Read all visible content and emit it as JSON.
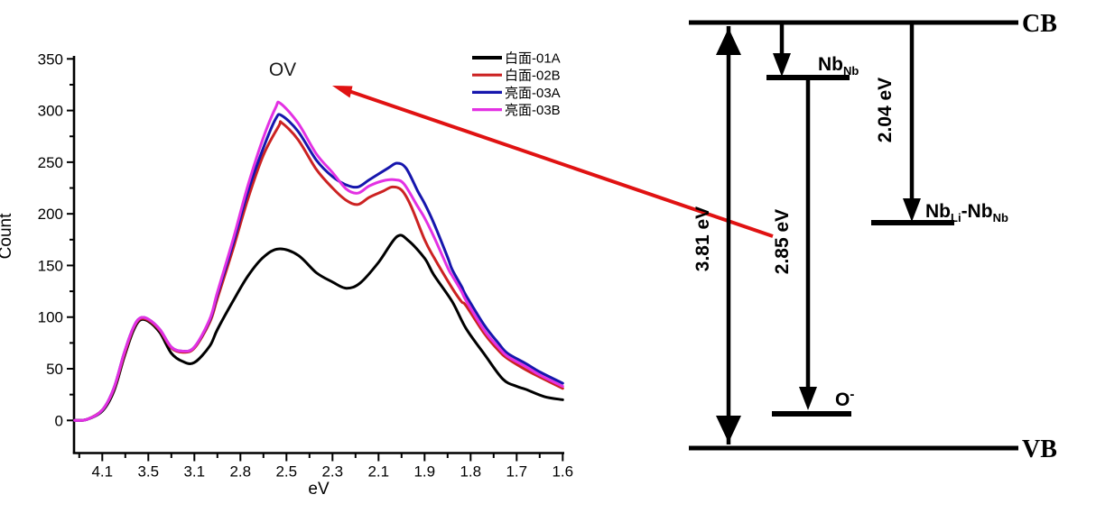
{
  "figure_background": "#ffffff",
  "colors": {
    "axis": "#000000",
    "diagram": "#000000",
    "annotation_arrow": "#e01212",
    "series_black": "#000000",
    "series_red": "#cc2222",
    "series_blue": "#1616ad",
    "series_magenta": "#e331e3"
  },
  "chart_data": {
    "type": "line",
    "title": "",
    "xlabel": "eV",
    "ylabel": "Count",
    "annotation": "OV",
    "x_ticks": [
      4.1,
      3.5,
      3.1,
      2.8,
      2.5,
      2.3,
      2.1,
      1.9,
      1.8,
      1.7,
      1.6
    ],
    "x_axis_note": "major ticks equally spaced; eV values decrease left to right (nonlinear energy scale)",
    "y_ticks": [
      0,
      50,
      100,
      150,
      200,
      250,
      300,
      350
    ],
    "ylim": [
      0,
      350
    ],
    "grid": false,
    "legend_position": "upper right",
    "series": [
      {
        "name": "白面-01A",
        "color": "#000000",
        "points": [
          [
            4.46,
            0
          ],
          [
            4.3,
            1
          ],
          [
            4.1,
            9
          ],
          [
            3.95,
            28
          ],
          [
            3.82,
            60
          ],
          [
            3.7,
            86
          ],
          [
            3.61,
            97
          ],
          [
            3.5,
            96
          ],
          [
            3.4,
            85
          ],
          [
            3.3,
            65
          ],
          [
            3.2,
            57
          ],
          [
            3.1,
            56
          ],
          [
            3.0,
            72
          ],
          [
            2.95,
            88
          ],
          [
            2.85,
            115
          ],
          [
            2.75,
            140
          ],
          [
            2.65,
            158
          ],
          [
            2.55,
            166
          ],
          [
            2.45,
            160
          ],
          [
            2.37,
            143
          ],
          [
            2.3,
            134
          ],
          [
            2.24,
            128
          ],
          [
            2.18,
            133
          ],
          [
            2.1,
            153
          ],
          [
            2.02,
            178
          ],
          [
            1.97,
            174
          ],
          [
            1.9,
            157
          ],
          [
            1.88,
            141
          ],
          [
            1.84,
            115
          ],
          [
            1.81,
            89
          ],
          [
            1.77,
            64
          ],
          [
            1.73,
            40
          ],
          [
            1.7,
            33
          ],
          [
            1.68,
            30
          ],
          [
            1.64,
            23
          ],
          [
            1.6,
            20
          ]
        ]
      },
      {
        "name": "白面-02B",
        "color": "#cc2222",
        "points": [
          [
            4.46,
            0
          ],
          [
            4.3,
            1
          ],
          [
            4.1,
            10
          ],
          [
            3.95,
            30
          ],
          [
            3.82,
            62
          ],
          [
            3.7,
            88
          ],
          [
            3.61,
            98
          ],
          [
            3.5,
            97
          ],
          [
            3.4,
            87
          ],
          [
            3.3,
            70
          ],
          [
            3.2,
            66
          ],
          [
            3.1,
            70
          ],
          [
            3.0,
            95
          ],
          [
            2.95,
            118
          ],
          [
            2.85,
            165
          ],
          [
            2.75,
            215
          ],
          [
            2.65,
            257
          ],
          [
            2.55,
            285
          ],
          [
            2.53,
            288
          ],
          [
            2.45,
            272
          ],
          [
            2.37,
            243
          ],
          [
            2.3,
            225
          ],
          [
            2.24,
            213
          ],
          [
            2.19,
            209
          ],
          [
            2.14,
            216
          ],
          [
            2.08,
            222
          ],
          [
            2.04,
            226
          ],
          [
            2.0,
            223
          ],
          [
            1.96,
            208
          ],
          [
            1.9,
            175
          ],
          [
            1.88,
            158
          ],
          [
            1.84,
            128
          ],
          [
            1.82,
            115
          ],
          [
            1.81,
            111
          ],
          [
            1.77,
            84
          ],
          [
            1.74,
            68
          ],
          [
            1.72,
            60
          ],
          [
            1.68,
            49
          ],
          [
            1.65,
            42
          ],
          [
            1.6,
            31
          ]
        ]
      },
      {
        "name": "亮面-03A",
        "color": "#1616ad",
        "points": [
          [
            4.46,
            0
          ],
          [
            4.3,
            1
          ],
          [
            4.1,
            10
          ],
          [
            3.95,
            31
          ],
          [
            3.82,
            64
          ],
          [
            3.7,
            89
          ],
          [
            3.61,
            99
          ],
          [
            3.5,
            98
          ],
          [
            3.4,
            88
          ],
          [
            3.3,
            71
          ],
          [
            3.2,
            67
          ],
          [
            3.1,
            71
          ],
          [
            3.0,
            97
          ],
          [
            2.95,
            122
          ],
          [
            2.85,
            170
          ],
          [
            2.75,
            222
          ],
          [
            2.65,
            264
          ],
          [
            2.57,
            292
          ],
          [
            2.53,
            295
          ],
          [
            2.45,
            280
          ],
          [
            2.37,
            252
          ],
          [
            2.3,
            236
          ],
          [
            2.24,
            228
          ],
          [
            2.19,
            226
          ],
          [
            2.14,
            233
          ],
          [
            2.06,
            244
          ],
          [
            2.02,
            249
          ],
          [
            1.98,
            244
          ],
          [
            1.93,
            222
          ],
          [
            1.9,
            210
          ],
          [
            1.88,
            191
          ],
          [
            1.85,
            158
          ],
          [
            1.84,
            146
          ],
          [
            1.82,
            130
          ],
          [
            1.81,
            121
          ],
          [
            1.77,
            92
          ],
          [
            1.74,
            75
          ],
          [
            1.72,
            65
          ],
          [
            1.68,
            55
          ],
          [
            1.65,
            47
          ],
          [
            1.6,
            36
          ]
        ]
      },
      {
        "name": "亮面-03B",
        "color": "#e331e3",
        "points": [
          [
            4.46,
            0
          ],
          [
            4.3,
            1
          ],
          [
            4.1,
            10
          ],
          [
            3.95,
            31
          ],
          [
            3.82,
            64
          ],
          [
            3.7,
            89
          ],
          [
            3.61,
            99
          ],
          [
            3.5,
            98
          ],
          [
            3.4,
            88
          ],
          [
            3.3,
            71
          ],
          [
            3.2,
            67
          ],
          [
            3.1,
            71
          ],
          [
            3.0,
            98
          ],
          [
            2.95,
            124
          ],
          [
            2.85,
            174
          ],
          [
            2.75,
            228
          ],
          [
            2.65,
            274
          ],
          [
            2.57,
            303
          ],
          [
            2.54,
            307
          ],
          [
            2.45,
            288
          ],
          [
            2.37,
            258
          ],
          [
            2.3,
            240
          ],
          [
            2.24,
            224
          ],
          [
            2.19,
            220
          ],
          [
            2.14,
            227
          ],
          [
            2.08,
            232
          ],
          [
            2.03,
            233
          ],
          [
            1.99,
            229
          ],
          [
            1.93,
            207
          ],
          [
            1.9,
            196
          ],
          [
            1.88,
            178
          ],
          [
            1.85,
            148
          ],
          [
            1.84,
            140
          ],
          [
            1.82,
            125
          ],
          [
            1.81,
            116
          ],
          [
            1.77,
            87
          ],
          [
            1.74,
            71
          ],
          [
            1.72,
            62
          ],
          [
            1.68,
            52
          ],
          [
            1.65,
            44
          ],
          [
            1.6,
            33
          ]
        ]
      }
    ]
  },
  "diagram": {
    "bands": [
      {
        "name": "conduction-band",
        "label": "CB"
      },
      {
        "name": "valence-band",
        "label": "VB"
      }
    ],
    "levels": [
      {
        "name": "nbnb-level",
        "label_parts": [
          {
            "text": "Nb"
          },
          {
            "sub": "Nb"
          }
        ]
      },
      {
        "name": "o-minus-level",
        "label_parts": [
          {
            "text": "O"
          },
          {
            "sup": "-"
          }
        ]
      },
      {
        "name": "nbli-nbnb-level",
        "label_parts": [
          {
            "text": "Nb"
          },
          {
            "sub": "Li"
          },
          {
            "text": "-Nb"
          },
          {
            "sub": "Nb"
          }
        ]
      }
    ],
    "transitions": [
      {
        "name": "bandgap-transition",
        "label": "3.81 eV",
        "energy_eV": 3.81,
        "style": "double-headed-arrow",
        "from": "CB",
        "to": "VB"
      },
      {
        "name": "nbnb-to-o-transition",
        "label": "2.85 eV",
        "energy_eV": 2.85,
        "style": "down-arrow",
        "from": "NbNb",
        "to": "O-"
      },
      {
        "name": "cb-to-nbli-transition",
        "label": "2.04 eV",
        "energy_eV": 2.04,
        "style": "down-arrow",
        "from": "CB",
        "to": "NbLi-NbNb"
      }
    ]
  }
}
